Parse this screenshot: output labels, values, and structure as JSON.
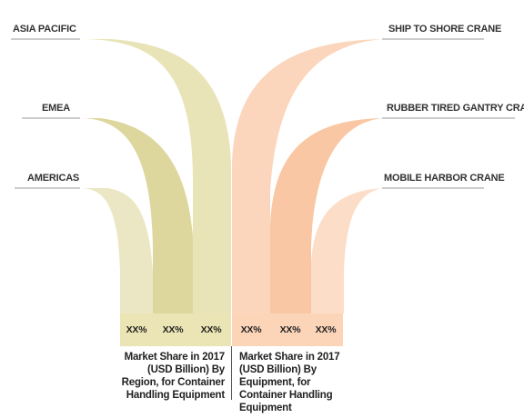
{
  "left_group": {
    "caption": "Market Share in 2017 (USD Billion) By Region, for Container Handling Equipment",
    "items": [
      {
        "label": "ASIA PACIFIC",
        "value": "XX%",
        "color": "#e8e4b8"
      },
      {
        "label": "EMEA",
        "value": "XX%",
        "color": "#ddd79e"
      },
      {
        "label": "AMERICAS",
        "value": "XX%",
        "color": "#ebe7c4"
      }
    ]
  },
  "right_group": {
    "caption": "Market Share in 2017 (USD Billion) By Equipment, for Container Handling Equipment",
    "items": [
      {
        "label": "SHIP TO SHORE CRANE",
        "value": "XX%",
        "color": "#fbd6bc"
      },
      {
        "label": "RUBBER TIRED GANTRY CRANE",
        "value": "XX%",
        "color": "#f9c7a3"
      },
      {
        "label": "MOBILE HARBOR CRANE",
        "value": "XX%",
        "color": "#fcddc8"
      }
    ]
  },
  "colors": {
    "label_line": "#999999",
    "left_base": "#ebe4b4",
    "right_base": "#fcd4b8"
  }
}
